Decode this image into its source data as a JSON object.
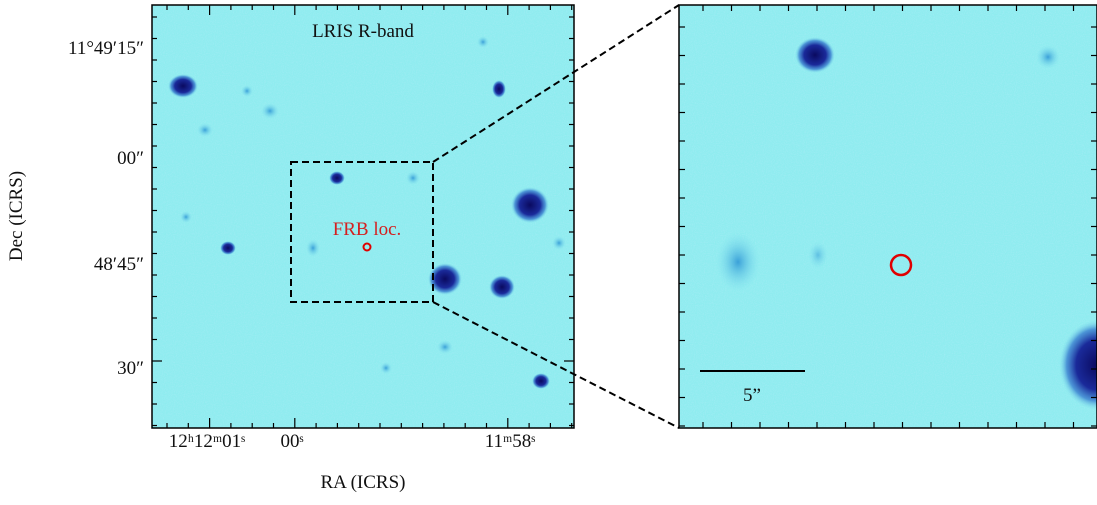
{
  "left_panel": {
    "title": "LRIS R-band",
    "x_label": "RA (ICRS)",
    "y_label": "Dec (ICRS)",
    "x_tick_labels": [
      "12ʰ12ᵐ01ˢ",
      "00ˢ",
      "11ᵐ58ˢ"
    ],
    "y_tick_labels": [
      "11°49′15″",
      "00″",
      "48′45″",
      "30″"
    ],
    "annotation": "FRB loc."
  },
  "right_panel": {
    "scale_bar_label": "5”"
  }
}
